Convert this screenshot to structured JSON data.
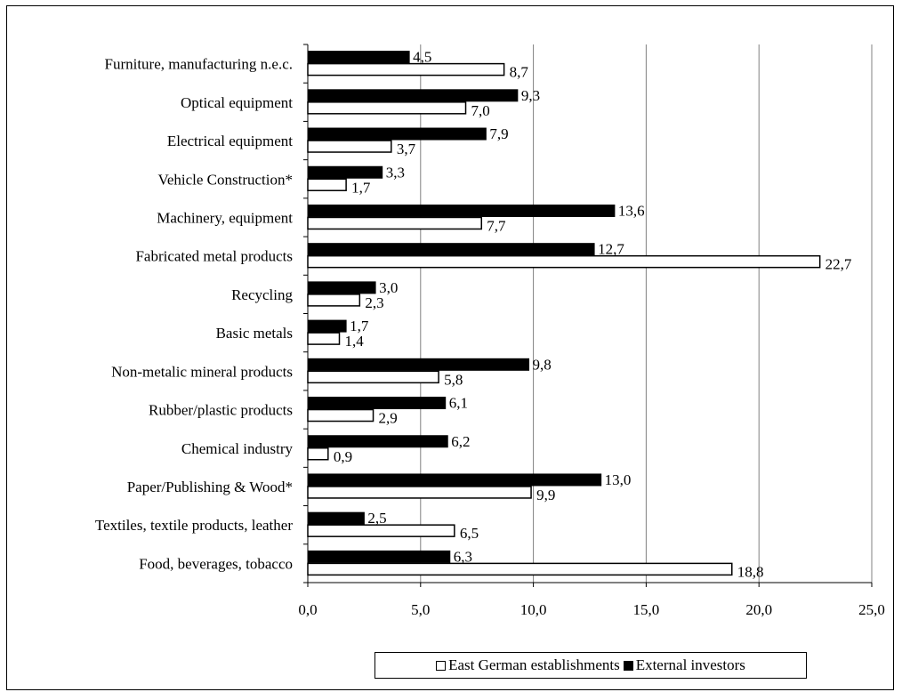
{
  "chart_data": {
    "type": "bar",
    "orientation": "horizontal",
    "title": "",
    "xlabel": "",
    "ylabel": "",
    "xlim": [
      0,
      25
    ],
    "x_ticks": [
      "0,0",
      "5,0",
      "10,0",
      "15,0",
      "20,0",
      "25,0"
    ],
    "x_tick_values": [
      0,
      5,
      10,
      15,
      20,
      25
    ],
    "grid": "vertical",
    "legend_position": "bottom",
    "categories": [
      "Food, beverages, tobacco",
      "Textiles, textile products, leather",
      "Paper/Publishing & Wood*",
      "Chemical industry",
      "Rubber/plastic products",
      "Non-metalic mineral products",
      "Basic metals",
      "Recycling",
      "Fabricated metal products",
      "Machinery, equipment",
      "Vehicle Construction*",
      "Electrical equipment",
      "Optical equipment",
      "Furniture, manufacturing n.e.c."
    ],
    "series": [
      {
        "name": "East German establishments",
        "color": "#ffffff",
        "values": [
          18.8,
          6.5,
          9.9,
          0.9,
          2.9,
          5.8,
          1.4,
          2.3,
          22.7,
          7.7,
          1.7,
          3.7,
          7.0,
          8.7
        ],
        "labels": [
          "18,8",
          "6,5",
          "9,9",
          "0,9",
          "2,9",
          "5,8",
          "1,4",
          "2,3",
          "22,7",
          "7,7",
          "1,7",
          "3,7",
          "7,0",
          "8,7"
        ]
      },
      {
        "name": "External investors",
        "color": "#000000",
        "values": [
          6.3,
          2.5,
          13.0,
          6.2,
          6.1,
          9.8,
          1.7,
          3.0,
          12.7,
          13.6,
          3.3,
          7.9,
          9.3,
          4.5
        ],
        "labels": [
          "6,3",
          "2,5",
          "13,0",
          "6,2",
          "6,1",
          "9,8",
          "1,7",
          "3,0",
          "12,7",
          "13,6",
          "3,3",
          "7,9",
          "9,3",
          "4,5"
        ]
      }
    ]
  }
}
